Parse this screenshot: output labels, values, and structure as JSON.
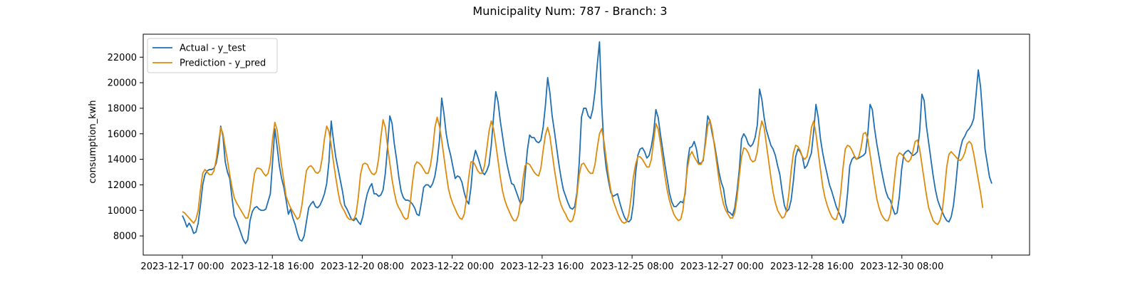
{
  "chart_data": {
    "type": "line",
    "title": "Municipality Num: 787 - Branch: 3",
    "xlabel": "",
    "ylabel": "consumption_kwh",
    "ylim": [
      6500,
      23800
    ],
    "x_start": "2023-12-17 00:00",
    "x_step": "2h",
    "x_tick_labels": [
      "2023-12-17 00:00",
      "2023-12-18 16:00",
      "2023-12-20 08:00",
      "2023-12-22 00:00",
      "2023-12-23 16:00",
      "2023-12-25 08:00",
      "2023-12-27 00:00",
      "2023-12-28 16:00",
      "2023-12-30 08:00",
      ""
    ],
    "y_ticks": [
      8000,
      10000,
      12000,
      14000,
      16000,
      18000,
      20000,
      22000
    ],
    "y_tick_labels": [
      "8000",
      "10000",
      "12000",
      "14000",
      "16000",
      "18000",
      "20000",
      "22000"
    ],
    "grid": false,
    "legend_position": "upper-left",
    "series": [
      {
        "name": "Actual - y_test",
        "color": "#1f6fb2",
        "values": [
          9600,
          9200,
          8700,
          9000,
          8700,
          8200,
          8300,
          9000,
          10400,
          12000,
          12800,
          13100,
          13200,
          13200,
          13300,
          13700,
          14700,
          16600,
          15800,
          13800,
          13000,
          12500,
          11000,
          9600,
          9200,
          8700,
          8200,
          7700,
          7400,
          7700,
          9200,
          9900,
          10200,
          10300,
          10100,
          10000,
          10000,
          10100,
          10700,
          11300,
          13800,
          16400,
          15000,
          13500,
          12500,
          11800,
          10800,
          9700,
          10100,
          9400,
          8900,
          8200,
          7700,
          7600,
          8000,
          9100,
          10200,
          10500,
          10700,
          10300,
          10200,
          10400,
          10800,
          11300,
          12100,
          13800,
          17000,
          15500,
          14200,
          13300,
          12400,
          11500,
          10400,
          10100,
          9700,
          9300,
          9200,
          9400,
          9100,
          8900,
          9500,
          10500,
          11300,
          11800,
          12100,
          11300,
          11300,
          11100,
          11200,
          11600,
          12900,
          15000,
          17400,
          16800,
          15200,
          14000,
          12600,
          11500,
          11000,
          10800,
          10800,
          10700,
          10500,
          10200,
          9700,
          9600,
          10600,
          11800,
          12000,
          12000,
          11800,
          12100,
          12700,
          13800,
          15500,
          18800,
          17600,
          16000,
          15000,
          14300,
          13400,
          12500,
          12700,
          12600,
          12200,
          11400,
          10800,
          10500,
          11800,
          13900,
          14700,
          14200,
          13600,
          13000,
          12800,
          13100,
          13600,
          15100,
          17300,
          19300,
          18500,
          17000,
          15800,
          14600,
          13600,
          12800,
          12100,
          12000,
          11500,
          11000,
          10500,
          10800,
          12700,
          14700,
          15900,
          15700,
          15700,
          15400,
          15300,
          15500,
          16500,
          18200,
          20400,
          19200,
          17400,
          16200,
          14900,
          13600,
          12500,
          11600,
          11100,
          10600,
          10200,
          10100,
          10300,
          11400,
          13700,
          17300,
          18000,
          18000,
          17400,
          17200,
          17900,
          19300,
          21400,
          23200,
          18200,
          14900,
          13300,
          12300,
          11400,
          11100,
          11200,
          11300,
          10600,
          10000,
          9500,
          9200,
          9100,
          9300,
          10500,
          12900,
          14300,
          14800,
          14900,
          14600,
          14100,
          14300,
          15000,
          16100,
          17900,
          17300,
          16000,
          14800,
          13600,
          12500,
          11400,
          10700,
          10300,
          10300,
          10500,
          10700,
          10600,
          11300,
          13700,
          14900,
          15000,
          15400,
          14800,
          13700,
          13700,
          13900,
          15500,
          17400,
          17000,
          16000,
          15200,
          14100,
          13000,
          12200,
          11700,
          10500,
          9900,
          9800,
          9600,
          10200,
          11500,
          13200,
          15600,
          16000,
          15700,
          15200,
          15000,
          15200,
          15700,
          16700,
          19500,
          18700,
          17300,
          16300,
          15700,
          15100,
          14800,
          14300,
          13500,
          12800,
          11500,
          10400,
          9900,
          10100,
          10800,
          12300,
          14200,
          14800,
          14600,
          14200,
          13300,
          13500,
          14000,
          14500,
          16200,
          18300,
          17300,
          15600,
          14500,
          13600,
          12800,
          12000,
          11500,
          10900,
          10300,
          9900,
          9500,
          9000,
          9600,
          11300,
          13500,
          14000,
          14200,
          14000,
          14100,
          14200,
          14300,
          14500,
          16000,
          18300,
          17900,
          16400,
          15200,
          14200,
          13200,
          12300,
          11500,
          11000,
          10800,
          10200,
          9700,
          9800,
          11100,
          13200,
          14400,
          14600,
          14700,
          14500,
          14300,
          14400,
          14600,
          16200,
          19100,
          18600,
          16600,
          15300,
          14000,
          12700,
          11600,
          10800,
          10300,
          9900,
          9500,
          9200,
          9100,
          9500,
          10400,
          12000,
          13900,
          14800,
          15500,
          15800,
          16200,
          16400,
          16700,
          17200,
          19000,
          21000,
          19700,
          17300,
          14800,
          13700,
          12600,
          12100
        ]
      },
      {
        "name": "Prediction - y_pred",
        "color": "#e08a0c",
        "values": [
          9900,
          9800,
          9600,
          9400,
          9200,
          9000,
          9300,
          10000,
          11600,
          12900,
          13200,
          13000,
          12800,
          12800,
          13100,
          14000,
          15300,
          16500,
          16000,
          14900,
          13900,
          12800,
          11800,
          11000,
          10600,
          10300,
          10000,
          9700,
          9400,
          9400,
          10200,
          11600,
          12900,
          13300,
          13300,
          13200,
          12900,
          12700,
          12900,
          13700,
          15600,
          16900,
          16300,
          14900,
          13500,
          12300,
          11100,
          10600,
          10200,
          9900,
          9600,
          9300,
          9500,
          10400,
          11800,
          13100,
          13400,
          13500,
          13300,
          13000,
          12900,
          13100,
          14100,
          15600,
          16600,
          16200,
          15100,
          13800,
          12600,
          11500,
          10600,
          10200,
          9900,
          9500,
          9300,
          9300,
          9300,
          9700,
          11000,
          12800,
          13600,
          13700,
          13600,
          13200,
          12900,
          12800,
          13000,
          14000,
          15700,
          17100,
          16500,
          15000,
          13700,
          12400,
          11400,
          10600,
          10200,
          9900,
          9500,
          9300,
          9400,
          10500,
          12100,
          13500,
          13800,
          13700,
          13500,
          13200,
          12900,
          12900,
          13500,
          14700,
          16500,
          17300,
          16600,
          15500,
          14200,
          12900,
          11700,
          11000,
          10500,
          10100,
          9700,
          9400,
          9300,
          9700,
          10900,
          12600,
          13800,
          13800,
          13500,
          13100,
          12900,
          12900,
          13500,
          14800,
          16200,
          17000,
          16400,
          15200,
          13900,
          12600,
          11500,
          10800,
          10300,
          9900,
          9500,
          9200,
          9200,
          9600,
          10700,
          12400,
          13500,
          13700,
          13600,
          13300,
          13000,
          12800,
          12700,
          13300,
          14700,
          15900,
          16500,
          15800,
          14500,
          13200,
          12100,
          11000,
          10400,
          10000,
          9700,
          9300,
          9100,
          9200,
          9800,
          11200,
          12800,
          13600,
          13700,
          13400,
          13100,
          12900,
          12900,
          13600,
          14900,
          16000,
          16400,
          15400,
          14000,
          12700,
          11600,
          10800,
          10300,
          9800,
          9400,
          9100,
          9000,
          9100,
          9700,
          11000,
          12600,
          13600,
          14200,
          14200,
          14000,
          13700,
          13400,
          13400,
          14000,
          15400,
          16800,
          16400,
          15300,
          14000,
          12700,
          11600,
          10800,
          10200,
          9700,
          9400,
          9200,
          9300,
          10000,
          11600,
          13300,
          14300,
          14600,
          14200,
          13900,
          13600,
          13600,
          14000,
          15200,
          16600,
          17100,
          16300,
          15000,
          13700,
          12400,
          11300,
          10500,
          10000,
          9700,
          9400,
          9400,
          9800,
          11000,
          12700,
          14200,
          14900,
          14800,
          14500,
          14000,
          13800,
          13900,
          14600,
          16100,
          17000,
          16500,
          15200,
          13900,
          12600,
          11400,
          10600,
          10000,
          9700,
          9400,
          9500,
          10000,
          11300,
          13100,
          14500,
          15100,
          15000,
          14700,
          14200,
          14000,
          14200,
          15100,
          16500,
          17000,
          16000,
          14600,
          13200,
          11900,
          11000,
          10400,
          9900,
          9500,
          9300,
          9300,
          9900,
          11400,
          13300,
          14800,
          15100,
          15000,
          14700,
          14300,
          14000,
          14200,
          14900,
          16000,
          16100,
          15600,
          14400,
          13200,
          12000,
          10900,
          10200,
          9700,
          9400,
          9200,
          9200,
          9700,
          11000,
          12700,
          14200,
          14500,
          14400,
          14200,
          13900,
          13800,
          14000,
          14600,
          15400,
          15500,
          14800,
          13600,
          12400,
          11200,
          10200,
          9700,
          9200,
          9000,
          8900,
          9200,
          9900,
          11500,
          13400,
          14400,
          14600,
          14400,
          14200,
          14000,
          13900,
          14100,
          14500,
          15200,
          15400,
          15200,
          14400,
          13400,
          12400,
          11400,
          10200
        ]
      }
    ]
  }
}
